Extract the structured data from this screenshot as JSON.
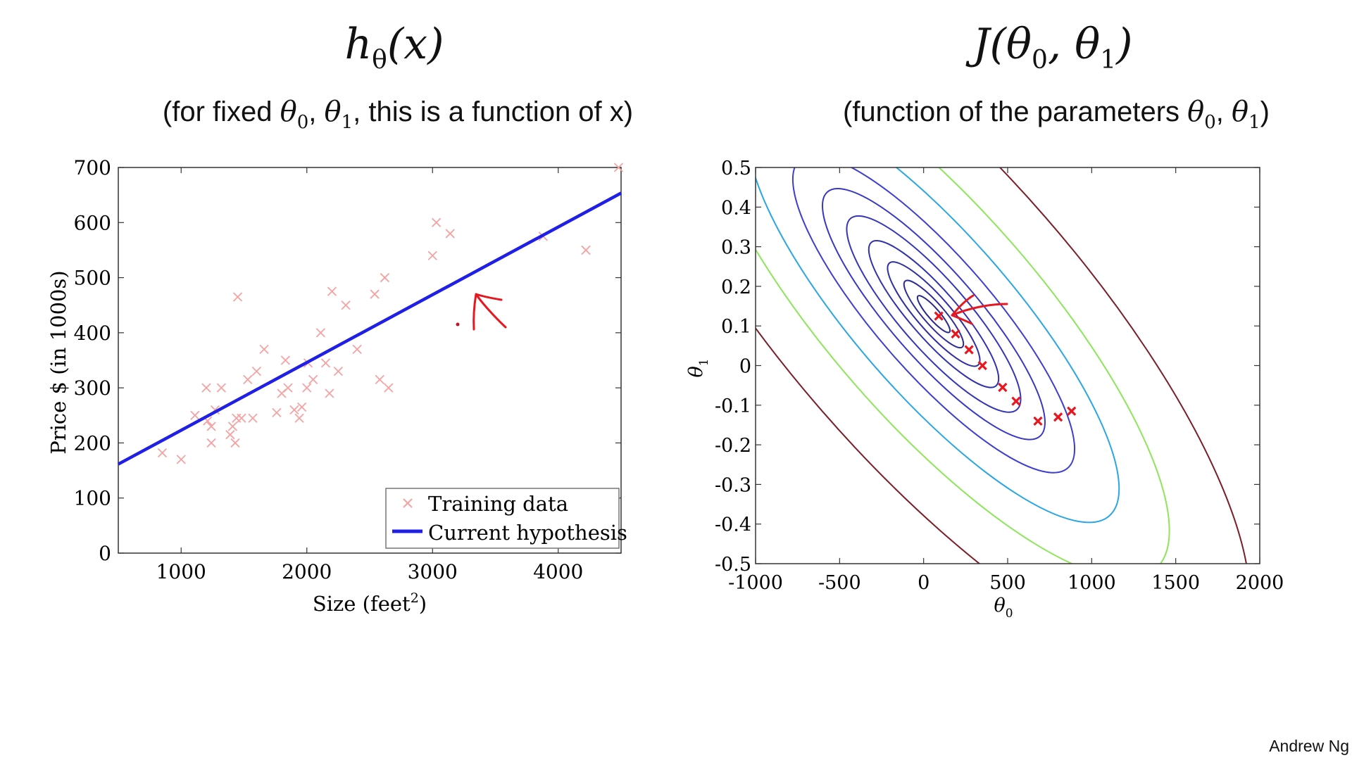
{
  "left_panel": {
    "title_parts": {
      "h": "h",
      "sub": "θ",
      "arg": "(x)"
    },
    "subtitle_parts": {
      "pre": "(for fixed ",
      "t0": "θ",
      "s0": "0",
      "comma": ", ",
      "t1": "θ",
      "s1": "1",
      "post": ", this is a function of x)"
    }
  },
  "right_panel": {
    "title_parts": {
      "J": "J",
      "open": "(",
      "t0": "θ",
      "s0": "0",
      "comma": ", ",
      "t1": "θ",
      "s1": "1",
      "close": ")"
    },
    "subtitle_parts": {
      "pre": "(function of the parameters ",
      "t0": "θ",
      "s0": "0",
      "comma": ", ",
      "t1": "θ",
      "s1": "1",
      "post": ")"
    }
  },
  "attribution": "Andrew Ng",
  "chart_data": [
    {
      "type": "scatter",
      "title": "",
      "xlabel": "Size (feet²)",
      "xlabel_base": "Size (feet",
      "xlabel_sup": "2",
      "xlabel_end": ")",
      "ylabel": "Price $ (in 1000s)",
      "xlim": [
        500,
        4500
      ],
      "ylim": [
        0,
        700
      ],
      "xticks": [
        1000,
        2000,
        3000,
        4000
      ],
      "yticks": [
        0,
        100,
        200,
        300,
        400,
        500,
        600,
        700
      ],
      "legend_position": "bottom-right",
      "series": [
        {
          "name": "Training data",
          "marker": "x",
          "color": "#f4a3a3",
          "points": [
            [
              850,
              182
            ],
            [
              1000,
              170
            ],
            [
              1110,
              250
            ],
            [
              1200,
              300
            ],
            [
              1210,
              240
            ],
            [
              1240,
              230
            ],
            [
              1240,
              200
            ],
            [
              1270,
              260
            ],
            [
              1320,
              300
            ],
            [
              1390,
              215
            ],
            [
              1410,
              230
            ],
            [
              1430,
              200
            ],
            [
              1440,
              245
            ],
            [
              1450,
              465
            ],
            [
              1480,
              245
            ],
            [
              1530,
              315
            ],
            [
              1570,
              245
            ],
            [
              1600,
              330
            ],
            [
              1660,
              370
            ],
            [
              1760,
              255
            ],
            [
              1800,
              290
            ],
            [
              1830,
              350
            ],
            [
              1850,
              300
            ],
            [
              1900,
              260
            ],
            [
              1940,
              245
            ],
            [
              1960,
              265
            ],
            [
              2000,
              300
            ],
            [
              2010,
              345
            ],
            [
              2050,
              315
            ],
            [
              2110,
              400
            ],
            [
              2150,
              345
            ],
            [
              2180,
              290
            ],
            [
              2200,
              475
            ],
            [
              2250,
              330
            ],
            [
              2310,
              450
            ],
            [
              2400,
              370
            ],
            [
              2540,
              470
            ],
            [
              2580,
              315
            ],
            [
              2620,
              500
            ],
            [
              2650,
              300
            ],
            [
              3000,
              540
            ],
            [
              3030,
              600
            ],
            [
              3140,
              580
            ],
            [
              3880,
              575
            ],
            [
              4220,
              550
            ],
            [
              4480,
              700
            ]
          ]
        },
        {
          "name": "Current hypothesis",
          "type": "line",
          "color": "#1f1fe6",
          "theta0": 100,
          "theta1": 0.123
        }
      ],
      "annotation": {
        "shape": "arrow",
        "color": "#e8161f",
        "hand_drawn": true
      }
    },
    {
      "type": "contour",
      "title": "",
      "xlabel": "θ",
      "xlabel_sub": "0",
      "ylabel": "θ",
      "ylabel_sub": "1",
      "xlim": [
        -1000,
        2000
      ],
      "ylim": [
        -0.5,
        0.5
      ],
      "xticks": [
        -1000,
        -500,
        0,
        500,
        1000,
        1500,
        2000
      ],
      "yticks": [
        0.5,
        0.4,
        0.3,
        0.2,
        0.1,
        0,
        -0.1,
        -0.2,
        -0.3,
        -0.4,
        -0.5
      ],
      "yticklabels": [
        "0.5",
        "0.4",
        "0.3",
        "0.2",
        "0.1",
        "0",
        "-0.1",
        "-0.2",
        "-0.3",
        "-0.4",
        "-0.5"
      ],
      "minimum": [
        60,
        0.13
      ],
      "contour_colors": [
        "#2a2a8c",
        "#2d2d96",
        "#2f2fa2",
        "#3131ad",
        "#3535b8",
        "#3838c2",
        "#3e3ecf",
        "#29a6e6",
        "#8ce65a",
        "#7a1f2a"
      ],
      "descent_path": [
        [
          90,
          0.125
        ],
        [
          190,
          0.08
        ],
        [
          270,
          0.04
        ],
        [
          350,
          0.0
        ],
        [
          470,
          -0.055
        ],
        [
          550,
          -0.09
        ],
        [
          680,
          -0.14
        ],
        [
          800,
          -0.13
        ],
        [
          880,
          -0.115
        ]
      ],
      "descent_color": "#e8161f",
      "annotation": {
        "shape": "arrow",
        "color": "#e8161f",
        "hand_drawn": true
      }
    }
  ]
}
